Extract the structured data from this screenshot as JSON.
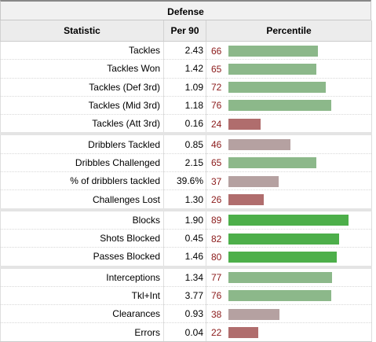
{
  "title": "Defense",
  "headers": {
    "statistic": "Statistic",
    "per90": "Per 90",
    "percentile": "Percentile"
  },
  "colors": {
    "high": "#4daf4a",
    "mid": "#8cb88a",
    "neutral": "#b5a1a1",
    "low": "#b06d6d",
    "percent_text": "#8b1a1a"
  },
  "groups": [
    [
      {
        "stat": "Tackles",
        "per90": "2.43",
        "percentile": 66
      },
      {
        "stat": "Tackles Won",
        "per90": "1.42",
        "percentile": 65
      },
      {
        "stat": "Tackles (Def 3rd)",
        "per90": "1.09",
        "percentile": 72
      },
      {
        "stat": "Tackles (Mid 3rd)",
        "per90": "1.18",
        "percentile": 76
      },
      {
        "stat": "Tackles (Att 3rd)",
        "per90": "0.16",
        "percentile": 24
      }
    ],
    [
      {
        "stat": "Dribblers Tackled",
        "per90": "0.85",
        "percentile": 46
      },
      {
        "stat": "Dribbles Challenged",
        "per90": "2.15",
        "percentile": 65
      },
      {
        "stat": "% of dribblers tackled",
        "per90": "39.6%",
        "percentile": 37
      },
      {
        "stat": "Challenges Lost",
        "per90": "1.30",
        "percentile": 26
      }
    ],
    [
      {
        "stat": "Blocks",
        "per90": "1.90",
        "percentile": 89
      },
      {
        "stat": "Shots Blocked",
        "per90": "0.45",
        "percentile": 82
      },
      {
        "stat": "Passes Blocked",
        "per90": "1.46",
        "percentile": 80
      }
    ],
    [
      {
        "stat": "Interceptions",
        "per90": "1.34",
        "percentile": 77
      },
      {
        "stat": "Tkl+Int",
        "per90": "3.77",
        "percentile": 76
      },
      {
        "stat": "Clearances",
        "per90": "0.93",
        "percentile": 38
      },
      {
        "stat": "Errors",
        "per90": "0.04",
        "percentile": 22
      }
    ]
  ]
}
